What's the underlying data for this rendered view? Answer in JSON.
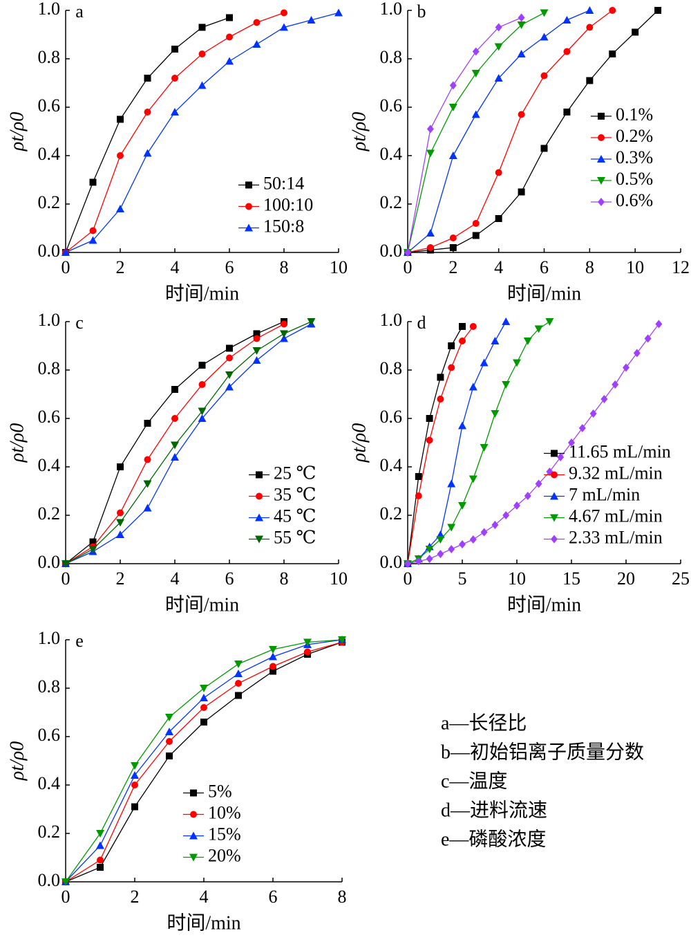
{
  "chart_data": [
    {
      "type": "line",
      "title": "a",
      "xlabel": "时间/min",
      "ylabel": "ρt/ρ0",
      "xlim": [
        0,
        10
      ],
      "ylim": [
        0,
        1
      ],
      "xticks": [
        0,
        2,
        4,
        6,
        8,
        10
      ],
      "yticks": [
        {
          "value": 0,
          "label": "0.0"
        },
        0.2,
        0.4,
        0.6,
        0.8,
        {
          "value": 1,
          "label": "1.0"
        }
      ],
      "legend": "lower right",
      "series": [
        {
          "name": "50:14",
          "color": "#000000",
          "marker": "square",
          "x": [
            0,
            1,
            2,
            3,
            4,
            5,
            6
          ],
          "values": [
            0,
            0.29,
            0.55,
            0.72,
            0.84,
            0.93,
            0.97
          ]
        },
        {
          "name": "100:10",
          "color": "#ff0000",
          "marker": "circle",
          "x": [
            0,
            1,
            2,
            3,
            4,
            5,
            6,
            7,
            8
          ],
          "values": [
            0,
            0.09,
            0.4,
            0.58,
            0.72,
            0.82,
            0.89,
            0.95,
            0.99
          ]
        },
        {
          "name": "150:8",
          "color": "#0033ff",
          "marker": "triangle",
          "x": [
            0,
            1,
            2,
            3,
            4,
            5,
            6,
            7,
            8,
            9,
            10
          ],
          "values": [
            0,
            0.05,
            0.18,
            0.41,
            0.58,
            0.69,
            0.79,
            0.86,
            0.93,
            0.96,
            0.99
          ]
        }
      ]
    },
    {
      "type": "line",
      "title": "b",
      "xlabel": "时间/min",
      "ylabel": "ρt/ρ0",
      "xlim": [
        0,
        12
      ],
      "ylim": [
        0,
        1
      ],
      "xticks": [
        0,
        2,
        4,
        6,
        8,
        10,
        12
      ],
      "yticks": [
        {
          "value": 0,
          "label": "0.0"
        },
        0.2,
        0.4,
        0.6,
        0.8,
        {
          "value": 1,
          "label": "1.0"
        }
      ],
      "legend": "center right",
      "series": [
        {
          "name": "0.1%",
          "color": "#000000",
          "marker": "square",
          "x": [
            0,
            1,
            2,
            3,
            4,
            5,
            6,
            7,
            8,
            9,
            10,
            11
          ],
          "values": [
            0,
            0.01,
            0.02,
            0.07,
            0.14,
            0.25,
            0.43,
            0.58,
            0.71,
            0.82,
            0.91,
            1.0
          ]
        },
        {
          "name": "0.2%",
          "color": "#ff0000",
          "marker": "circle",
          "x": [
            0,
            1,
            2,
            3,
            4,
            5,
            6,
            7,
            8,
            9
          ],
          "values": [
            0,
            0.02,
            0.06,
            0.12,
            0.33,
            0.57,
            0.73,
            0.83,
            0.93,
            1.0
          ]
        },
        {
          "name": "0.3%",
          "color": "#0033ff",
          "marker": "triangle",
          "x": [
            0,
            1,
            2,
            3,
            4,
            5,
            6,
            7,
            8
          ],
          "values": [
            0,
            0.08,
            0.4,
            0.57,
            0.72,
            0.82,
            0.89,
            0.96,
            1.0
          ]
        },
        {
          "name": "0.5%",
          "color": "#009900",
          "marker": "down-triangle",
          "x": [
            0,
            1,
            2,
            3,
            4,
            5,
            6
          ],
          "values": [
            0,
            0.41,
            0.6,
            0.74,
            0.85,
            0.94,
            0.99
          ]
        },
        {
          "name": "0.6%",
          "color": "#a040ff",
          "marker": "diamond",
          "x": [
            0,
            1,
            2,
            3,
            4,
            5
          ],
          "values": [
            0,
            0.51,
            0.69,
            0.83,
            0.93,
            0.97
          ]
        }
      ]
    },
    {
      "type": "line",
      "title": "c",
      "xlabel": "时间/min",
      "ylabel": "ρt/ρ0",
      "xlim": [
        0,
        10
      ],
      "ylim": [
        0,
        1
      ],
      "xticks": [
        0,
        2,
        4,
        6,
        8,
        10
      ],
      "yticks": [
        {
          "value": 0,
          "label": "0.0"
        },
        0.2,
        0.4,
        0.6,
        0.8,
        {
          "value": 1,
          "label": "1.0"
        }
      ],
      "legend": "lower right",
      "series": [
        {
          "name": "25 ℃",
          "color": "#000000",
          "marker": "square",
          "x": [
            0,
            1,
            2,
            3,
            4,
            5,
            6,
            7,
            8
          ],
          "values": [
            0,
            0.09,
            0.4,
            0.58,
            0.72,
            0.82,
            0.89,
            0.95,
            1.0
          ]
        },
        {
          "name": "35 ℃",
          "color": "#ff0000",
          "marker": "circle",
          "x": [
            0,
            1,
            2,
            3,
            4,
            5,
            6,
            7,
            8
          ],
          "values": [
            0,
            0.07,
            0.21,
            0.43,
            0.6,
            0.74,
            0.85,
            0.93,
            0.99
          ]
        },
        {
          "name": "45 ℃",
          "color": "#0033ff",
          "marker": "triangle",
          "x": [
            0,
            1,
            2,
            3,
            4,
            5,
            6,
            7,
            8,
            9
          ],
          "values": [
            0,
            0.05,
            0.12,
            0.23,
            0.44,
            0.6,
            0.73,
            0.84,
            0.93,
            0.99
          ]
        },
        {
          "name": "55 ℃",
          "color": "#006600",
          "marker": "down-triangle",
          "x": [
            0,
            1,
            2,
            3,
            4,
            5,
            6,
            7,
            8,
            9
          ],
          "values": [
            0,
            0.06,
            0.17,
            0.33,
            0.49,
            0.63,
            0.78,
            0.88,
            0.95,
            1.0
          ]
        }
      ]
    },
    {
      "type": "line",
      "title": "d",
      "xlabel": "时间/min",
      "ylabel": "ρt/ρ0",
      "xlim": [
        0,
        25
      ],
      "ylim": [
        0,
        1
      ],
      "xticks": [
        0,
        5,
        10,
        15,
        20,
        25
      ],
      "yticks": [
        {
          "value": 0,
          "label": "0.0"
        },
        0.2,
        0.4,
        0.6,
        0.8,
        {
          "value": 1,
          "label": "1.0"
        }
      ],
      "legend": "lower right",
      "series": [
        {
          "name": "11.65 mL/min",
          "color": "#000000",
          "marker": "square",
          "x": [
            0,
            1,
            2,
            3,
            4,
            5
          ],
          "values": [
            0,
            0.36,
            0.6,
            0.77,
            0.9,
            0.98
          ]
        },
        {
          "name": "9.32 mL/min",
          "color": "#ff0000",
          "marker": "circle",
          "x": [
            0,
            1,
            2,
            3,
            4,
            5,
            6
          ],
          "values": [
            0,
            0.28,
            0.51,
            0.68,
            0.81,
            0.92,
            0.98
          ]
        },
        {
          "name": "7 mL/min",
          "color": "#0033ff",
          "marker": "triangle",
          "x": [
            0,
            1,
            2,
            3,
            4,
            5,
            6,
            7,
            8,
            9
          ],
          "values": [
            0,
            0.02,
            0.07,
            0.12,
            0.33,
            0.57,
            0.73,
            0.83,
            0.92,
            1.0
          ]
        },
        {
          "name": "4.67 mL/min",
          "color": "#009900",
          "marker": "down-triangle",
          "x": [
            0,
            1,
            2,
            3,
            4,
            5,
            6,
            7,
            8,
            9,
            10,
            11,
            12,
            13
          ],
          "values": [
            0,
            0.02,
            0.06,
            0.1,
            0.15,
            0.24,
            0.35,
            0.48,
            0.62,
            0.74,
            0.83,
            0.92,
            0.97,
            1.0
          ]
        },
        {
          "name": "2.33 mL/min",
          "color": "#a040ff",
          "marker": "diamond",
          "x": [
            0,
            1,
            2,
            3,
            4,
            5,
            6,
            7,
            8,
            9,
            10,
            11,
            12,
            13,
            14,
            15,
            16,
            17,
            18,
            19,
            20,
            21,
            22,
            23
          ],
          "values": [
            0,
            0.01,
            0.02,
            0.04,
            0.06,
            0.08,
            0.1,
            0.13,
            0.16,
            0.2,
            0.24,
            0.28,
            0.33,
            0.38,
            0.44,
            0.5,
            0.56,
            0.62,
            0.68,
            0.74,
            0.81,
            0.87,
            0.93,
            0.99
          ]
        }
      ]
    },
    {
      "type": "line",
      "title": "e",
      "xlabel": "时间/min",
      "ylabel": "ρt/ρ0",
      "xlim": [
        0,
        8
      ],
      "ylim": [
        0,
        1
      ],
      "xticks": [
        0,
        2,
        4,
        6,
        8
      ],
      "yticks": [
        {
          "value": 0,
          "label": "0.0"
        },
        0.2,
        0.4,
        0.6,
        0.8,
        {
          "value": 1,
          "label": "1.0"
        }
      ],
      "legend": "lower right",
      "series": [
        {
          "name": "5%",
          "color": "#000000",
          "marker": "square",
          "x": [
            0,
            1,
            2,
            3,
            4,
            5,
            6,
            7,
            8
          ],
          "values": [
            0,
            0.06,
            0.31,
            0.52,
            0.66,
            0.77,
            0.87,
            0.94,
            0.99
          ]
        },
        {
          "name": "10%",
          "color": "#ff0000",
          "marker": "circle",
          "x": [
            0,
            1,
            2,
            3,
            4,
            5,
            6,
            7,
            8
          ],
          "values": [
            0,
            0.09,
            0.4,
            0.58,
            0.72,
            0.82,
            0.89,
            0.95,
            0.99
          ]
        },
        {
          "name": "15%",
          "color": "#0033ff",
          "marker": "triangle",
          "x": [
            0,
            1,
            2,
            3,
            4,
            5,
            6,
            7,
            8
          ],
          "values": [
            0,
            0.15,
            0.44,
            0.62,
            0.76,
            0.86,
            0.93,
            0.98,
            1.0
          ]
        },
        {
          "name": "20%",
          "color": "#009900",
          "marker": "down-triangle",
          "x": [
            0,
            1,
            2,
            3,
            4,
            5,
            6,
            7,
            8
          ],
          "values": [
            0,
            0.2,
            0.48,
            0.68,
            0.8,
            0.9,
            0.96,
            0.99,
            1.0
          ]
        }
      ]
    }
  ],
  "captions": [
    "a—长径比",
    "b—初始铝离子质量分数",
    "c—温度",
    "d—进料流速",
    "e—磷酸浓度"
  ]
}
